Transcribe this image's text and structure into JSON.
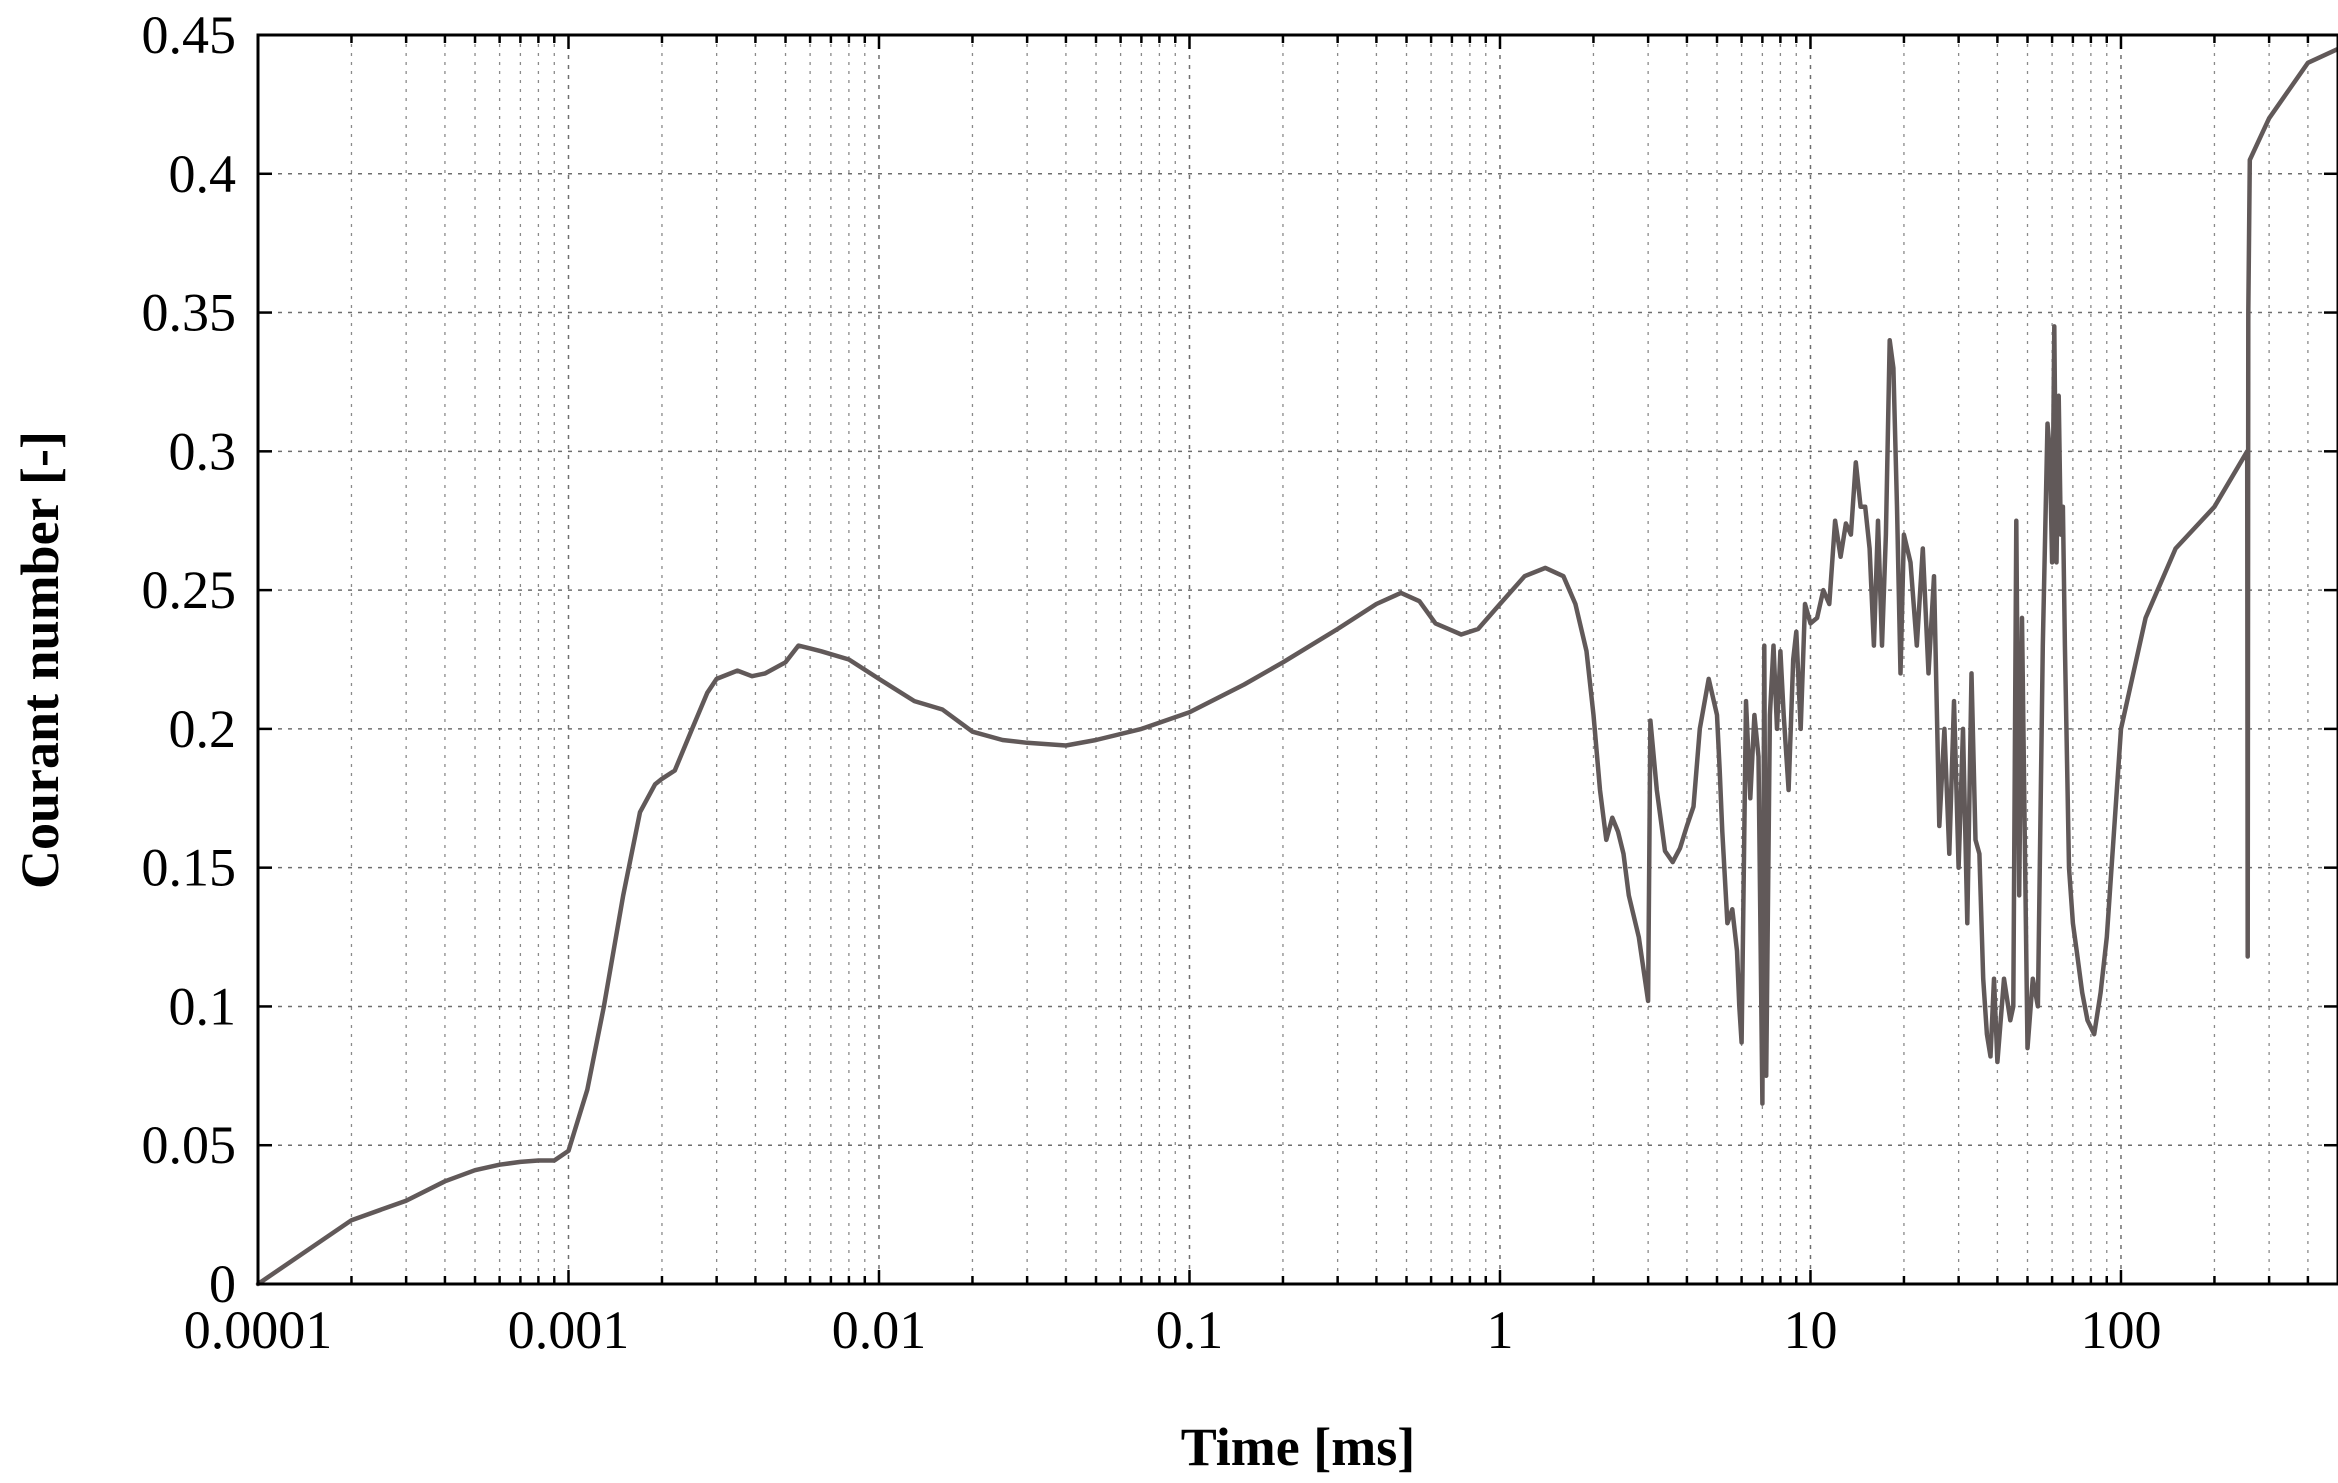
{
  "chart_data": {
    "type": "line",
    "title": "",
    "xlabel": "Time [ms]",
    "ylabel": "Courant number [-]",
    "xscale": "log",
    "xlim": [
      0.0001,
      500
    ],
    "ylim": [
      0,
      0.45
    ],
    "grid": true,
    "xticks": [
      0.0001,
      0.001,
      0.01,
      0.1,
      1,
      10,
      100
    ],
    "xtick_labels": [
      "0.0001",
      "0.001",
      "0.01",
      "0.1",
      "1",
      "10",
      "100"
    ],
    "yticks": [
      0,
      0.05,
      0.1,
      0.15,
      0.2,
      0.25,
      0.3,
      0.35,
      0.4,
      0.45
    ],
    "ytick_labels": [
      "0",
      "0.05",
      "0.1",
      "0.15",
      "0.2",
      "0.25",
      "0.3",
      "0.35",
      "0.4",
      "0.45"
    ],
    "series": [
      {
        "color": "#615959",
        "x": [
          0.0001,
          0.0002,
          0.0003,
          0.0004,
          0.0005,
          0.0006,
          0.0007,
          0.0008,
          0.0009,
          0.001,
          0.00115,
          0.0013,
          0.0015,
          0.0017,
          0.0019,
          0.002,
          0.0022,
          0.0025,
          0.0028,
          0.003,
          0.0035,
          0.0039,
          0.0043,
          0.005,
          0.0055,
          0.006,
          0.0065,
          0.008,
          0.01,
          0.013,
          0.016,
          0.02,
          0.025,
          0.03,
          0.04,
          0.05,
          0.07,
          0.1,
          0.15,
          0.2,
          0.3,
          0.4,
          0.48,
          0.55,
          0.62,
          0.75,
          0.85,
          1.0,
          1.2,
          1.4,
          1.6,
          1.75,
          1.9,
          2.0,
          2.1,
          2.2,
          2.3,
          2.4,
          2.5,
          2.6,
          2.8,
          3.0,
          3.05,
          3.2,
          3.4,
          3.6,
          3.8,
          4.0,
          4.2,
          4.4,
          4.7,
          5.0,
          5.1,
          5.2,
          5.4,
          5.6,
          5.8,
          5.9,
          6.0,
          6.2,
          6.4,
          6.6,
          6.8,
          7.0,
          7.1,
          7.2,
          7.4,
          7.6,
          7.8,
          8.0,
          8.2,
          8.5,
          8.8,
          9.0,
          9.3,
          9.6,
          10.0,
          10.5,
          11.0,
          11.5,
          12.0,
          12.5,
          13.0,
          13.5,
          14.0,
          14.5,
          15.0,
          15.5,
          16.0,
          16.5,
          17.0,
          17.5,
          18.0,
          18.5,
          19.0,
          19.5,
          20.0,
          21.0,
          22.0,
          23.0,
          24.0,
          25.0,
          26.0,
          27.0,
          28.0,
          29.0,
          30.0,
          31.0,
          32.0,
          33.0,
          34.0,
          35.0,
          36.0,
          37.0,
          38.0,
          39.0,
          40.0,
          42.0,
          44.0,
          45.0,
          46.0,
          47.0,
          48.0,
          49.0,
          50.0,
          52.0,
          54.0,
          56.0,
          58.0,
          59.0,
          60.0,
          61.0,
          62.0,
          63.0,
          64.0,
          65.0,
          66.0,
          68.0,
          70.0,
          72.0,
          75.0,
          78.0,
          82.0,
          86.0,
          90.0,
          100.0,
          120.0,
          150.0,
          200.0,
          255.0,
          256.0,
          257.0,
          260.0,
          300.0,
          400.0,
          500.0
        ],
        "y": [
          0.0,
          0.023,
          0.03,
          0.037,
          0.041,
          0.043,
          0.044,
          0.0445,
          0.0445,
          0.048,
          0.07,
          0.1,
          0.14,
          0.17,
          0.18,
          0.182,
          0.185,
          0.2,
          0.213,
          0.218,
          0.221,
          0.219,
          0.22,
          0.224,
          0.23,
          0.229,
          0.228,
          0.225,
          0.218,
          0.21,
          0.207,
          0.199,
          0.196,
          0.195,
          0.194,
          0.196,
          0.2,
          0.206,
          0.216,
          0.224,
          0.236,
          0.245,
          0.249,
          0.246,
          0.238,
          0.234,
          0.236,
          0.245,
          0.255,
          0.258,
          0.255,
          0.245,
          0.228,
          0.205,
          0.178,
          0.16,
          0.168,
          0.163,
          0.155,
          0.14,
          0.125,
          0.102,
          0.203,
          0.178,
          0.156,
          0.152,
          0.157,
          0.165,
          0.172,
          0.2,
          0.218,
          0.205,
          0.185,
          0.163,
          0.13,
          0.135,
          0.12,
          0.1,
          0.087,
          0.21,
          0.175,
          0.205,
          0.19,
          0.065,
          0.23,
          0.075,
          0.205,
          0.23,
          0.2,
          0.228,
          0.205,
          0.178,
          0.225,
          0.235,
          0.2,
          0.245,
          0.238,
          0.24,
          0.25,
          0.245,
          0.275,
          0.262,
          0.274,
          0.27,
          0.296,
          0.28,
          0.28,
          0.265,
          0.23,
          0.275,
          0.23,
          0.27,
          0.34,
          0.33,
          0.28,
          0.22,
          0.27,
          0.26,
          0.23,
          0.265,
          0.22,
          0.255,
          0.165,
          0.2,
          0.155,
          0.21,
          0.15,
          0.2,
          0.13,
          0.22,
          0.16,
          0.155,
          0.11,
          0.09,
          0.082,
          0.11,
          0.08,
          0.11,
          0.095,
          0.1,
          0.275,
          0.14,
          0.24,
          0.16,
          0.085,
          0.11,
          0.1,
          0.23,
          0.31,
          0.3,
          0.26,
          0.345,
          0.26,
          0.32,
          0.27,
          0.28,
          0.23,
          0.15,
          0.13,
          0.12,
          0.105,
          0.095,
          0.09,
          0.105,
          0.125,
          0.2,
          0.24,
          0.265,
          0.28,
          0.3,
          0.118,
          0.35,
          0.405,
          0.42,
          0.44,
          0.445
        ]
      }
    ]
  }
}
